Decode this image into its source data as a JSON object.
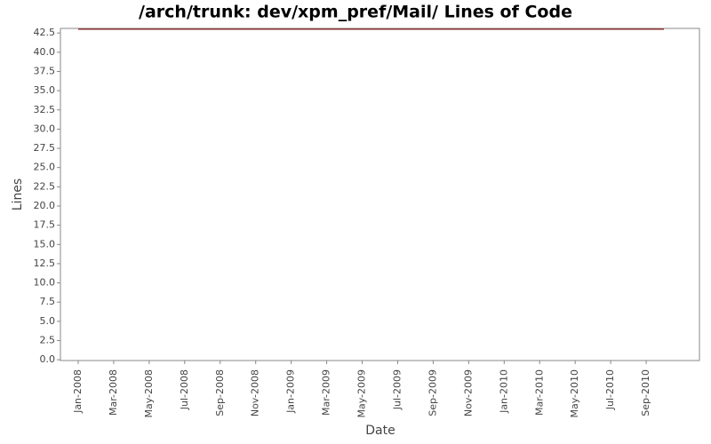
{
  "chart_data": {
    "type": "line",
    "title": "/arch/trunk: dev/xpm_pref/Mail/ Lines of Code",
    "x_label": "Date",
    "y_label": "Lines",
    "x": [
      "2008-01",
      "2010-10"
    ],
    "series": [
      {
        "color": "#8b1a1a",
        "values": [
          43,
          43
        ]
      }
    ],
    "xlim": [
      "2007-12",
      "2010-12"
    ],
    "xticks": [
      {
        "value": "2008-01",
        "label": "Jan-2008"
      },
      {
        "value": "2008-03",
        "label": "Mar-2008"
      },
      {
        "value": "2008-05",
        "label": "May-2008"
      },
      {
        "value": "2008-07",
        "label": "Jul-2008"
      },
      {
        "value": "2008-09",
        "label": "Sep-2008"
      },
      {
        "value": "2008-11",
        "label": "Nov-2008"
      },
      {
        "value": "2009-01",
        "label": "Jan-2009"
      },
      {
        "value": "2009-03",
        "label": "Mar-2009"
      },
      {
        "value": "2009-05",
        "label": "May-2009"
      },
      {
        "value": "2009-07",
        "label": "Jul-2009"
      },
      {
        "value": "2009-09",
        "label": "Sep-2009"
      },
      {
        "value": "2009-11",
        "label": "Nov-2009"
      },
      {
        "value": "2010-01",
        "label": "Jan-2010"
      },
      {
        "value": "2010-03",
        "label": "Mar-2010"
      },
      {
        "value": "2010-05",
        "label": "May-2010"
      },
      {
        "value": "2010-07",
        "label": "Jul-2010"
      },
      {
        "value": "2010-09",
        "label": "Sep-2010"
      }
    ],
    "ylim": [
      -0.1,
      43.1
    ],
    "yticks": [
      {
        "value": 0,
        "label": "0.0"
      },
      2.5,
      {
        "value": 5,
        "label": "5.0"
      },
      7.5,
      {
        "value": 10,
        "label": "10.0"
      },
      12.5,
      {
        "value": 15,
        "label": "15.0"
      },
      17.5,
      {
        "value": 20,
        "label": "20.0"
      },
      22.5,
      {
        "value": 25,
        "label": "25.0"
      },
      27.5,
      {
        "value": 30,
        "label": "30.0"
      },
      32.5,
      {
        "value": 35,
        "label": "35.0"
      },
      37.5,
      {
        "value": 40,
        "label": "40.0"
      },
      42.5
    ],
    "grid": false
  }
}
